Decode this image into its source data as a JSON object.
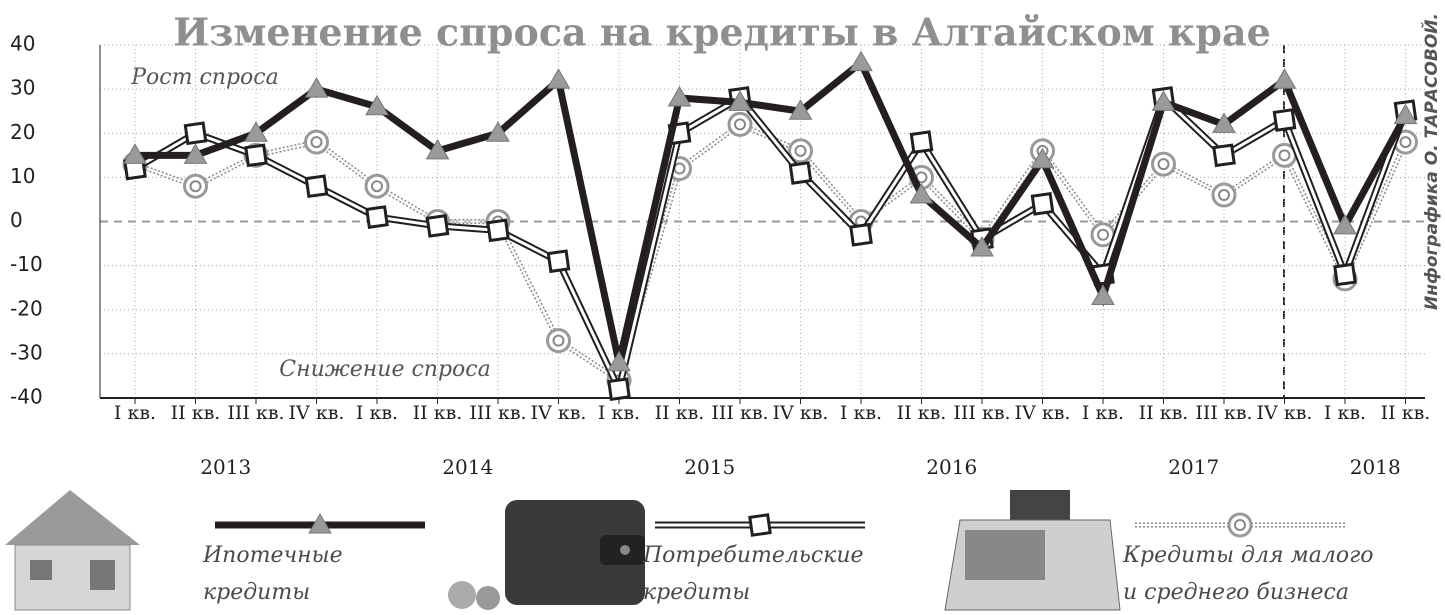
{
  "chart_data": {
    "type": "line",
    "title": "Изменение спроса на кредиты в Алтайском крае",
    "annotations": {
      "growth": "Рост спроса",
      "decline": "Снижение спроса",
      "credit": "Инфографика О. ТАРАСОВОЙ."
    },
    "categories": [
      "I кв.",
      "II кв.",
      "III кв.",
      "IV кв.",
      "I кв.",
      "II кв.",
      "III кв.",
      "IV кв.",
      "I кв.",
      "II кв.",
      "III кв.",
      "IV кв.",
      "I кв.",
      "II кв.",
      "III кв.",
      "IV кв.",
      "I кв.",
      "II кв.",
      "III кв.",
      "IV кв.",
      "I кв.",
      "II кв."
    ],
    "years": [
      "2013",
      "2014",
      "2015",
      "2016",
      "2017",
      "2018"
    ],
    "series": [
      {
        "name": "Ипотечные кредиты",
        "color": "#231f20",
        "marker": "triangle",
        "values": [
          15,
          15,
          20,
          30,
          26,
          16,
          20,
          32,
          -32,
          28,
          27,
          25,
          36,
          6,
          -6,
          14,
          -17,
          27,
          22,
          32,
          -1,
          24
        ]
      },
      {
        "name": "Потребительские кредиты",
        "color": "#231f20",
        "marker": "square",
        "values": [
          12,
          20,
          15,
          8,
          1,
          -1,
          -2,
          -9,
          -38,
          20,
          28,
          11,
          -3,
          18,
          -4,
          4,
          -12,
          28,
          15,
          23,
          -12,
          25
        ]
      },
      {
        "name": "Кредиты для малого и среднего бизнеса",
        "color": "#8a8a8a",
        "marker": "circle",
        "values": [
          13,
          8,
          15,
          18,
          8,
          0,
          0,
          -27,
          -36,
          12,
          22,
          16,
          0,
          10,
          -4,
          16,
          -3,
          13,
          6,
          15,
          -13,
          18
        ]
      }
    ],
    "ylim": [
      -40,
      40
    ],
    "yticks": [
      -40,
      -30,
      -20,
      -10,
      0,
      10,
      20,
      30,
      40
    ],
    "grid": true
  }
}
